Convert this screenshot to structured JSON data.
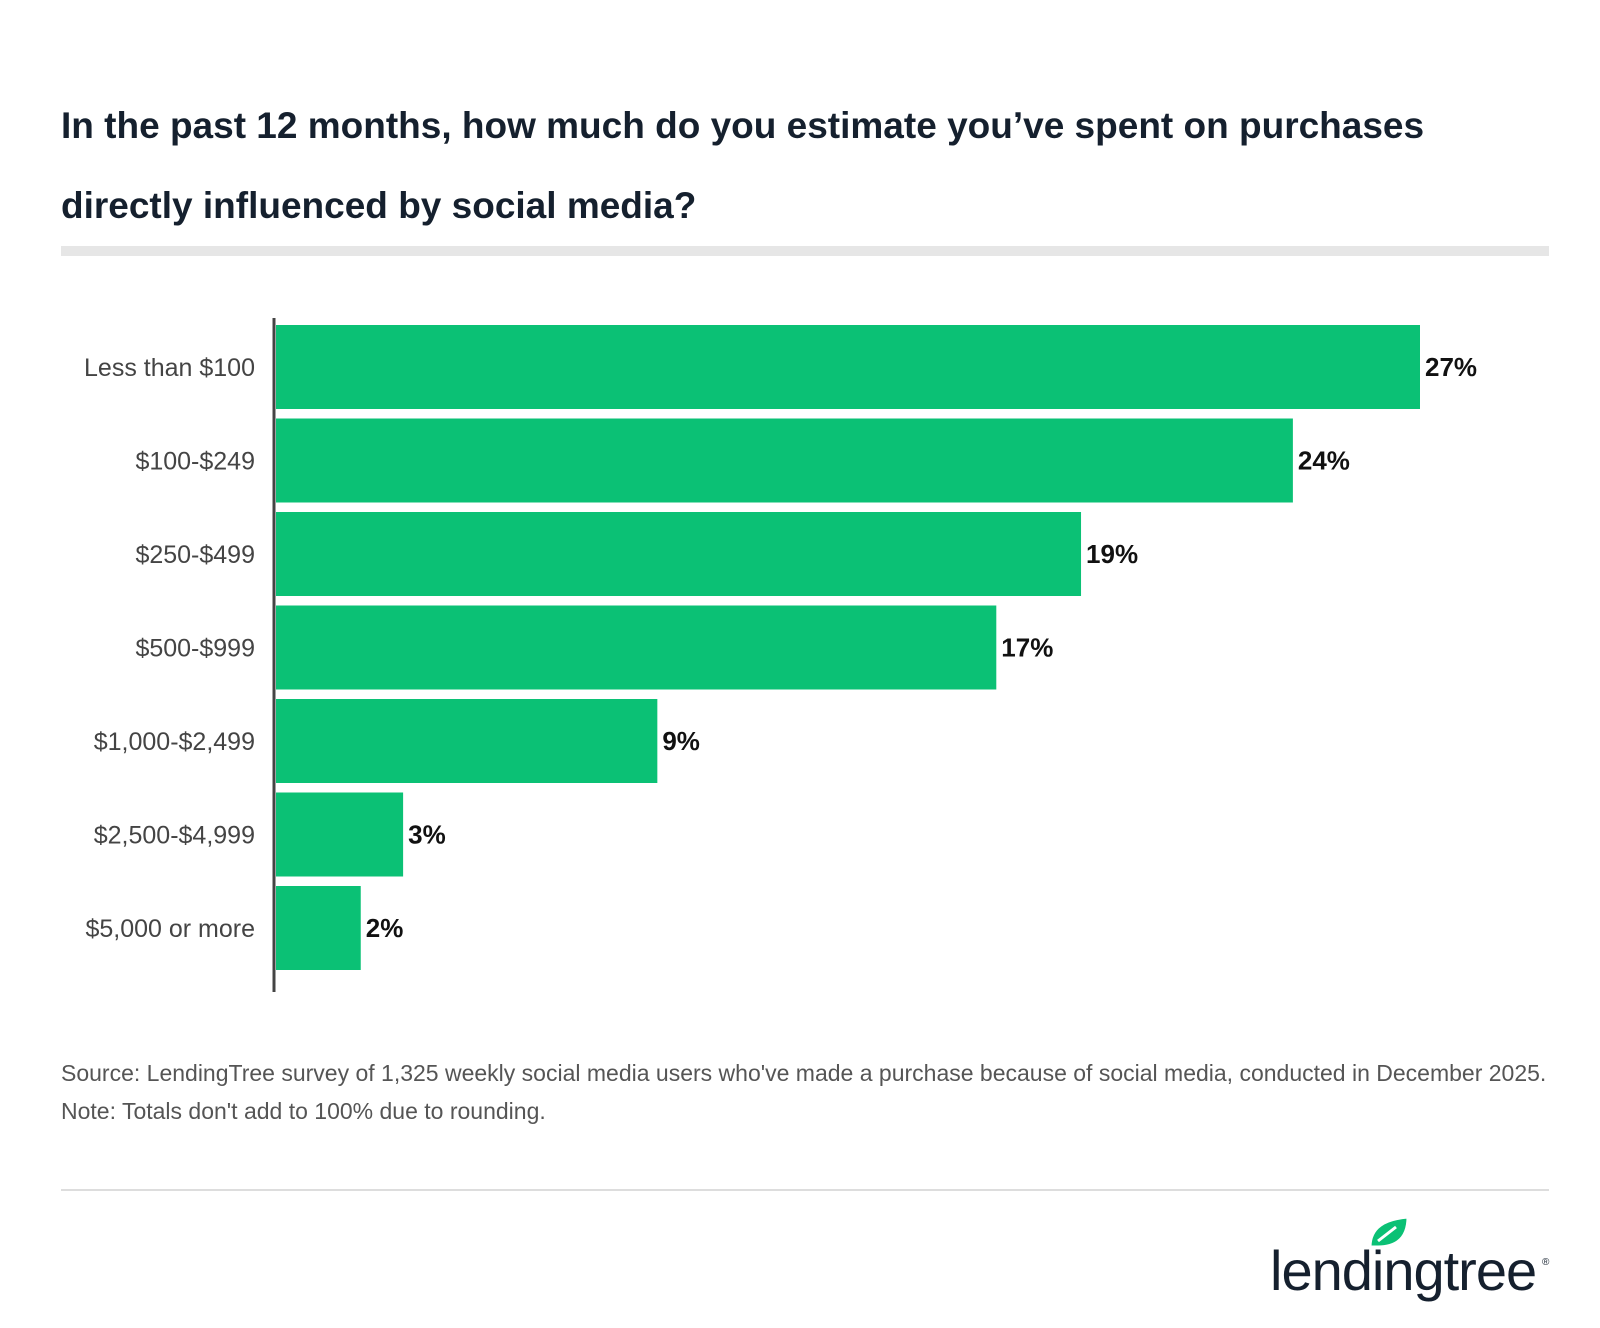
{
  "chart_data": {
    "type": "bar",
    "orientation": "horizontal",
    "title": "In the past 12 months, how much do you estimate you’ve spent on purchases directly influenced by social media?",
    "categories": [
      "Less than $100",
      "$100-$249",
      "$250-$499",
      "$500-$999",
      "$1,000-$2,499",
      "$2,500-$4,999",
      "$5,000 or more"
    ],
    "values": [
      27,
      24,
      19,
      17,
      9,
      3,
      2
    ],
    "data_labels": [
      "27%",
      "24%",
      "19%",
      "17%",
      "9%",
      "3%",
      "2%"
    ],
    "unit": "%",
    "xlim": [
      0,
      27
    ],
    "grid": false,
    "bar_color": "#0bc175"
  },
  "source": "Source: LendingTree survey of 1,325 weekly social media users who've made a purchase because of social media, conducted in December 2025. Note: Totals don't add to 100% due to rounding.",
  "logo": {
    "text": "lendingtree",
    "color": "#15202e",
    "leaf_color": "#0bc175"
  }
}
